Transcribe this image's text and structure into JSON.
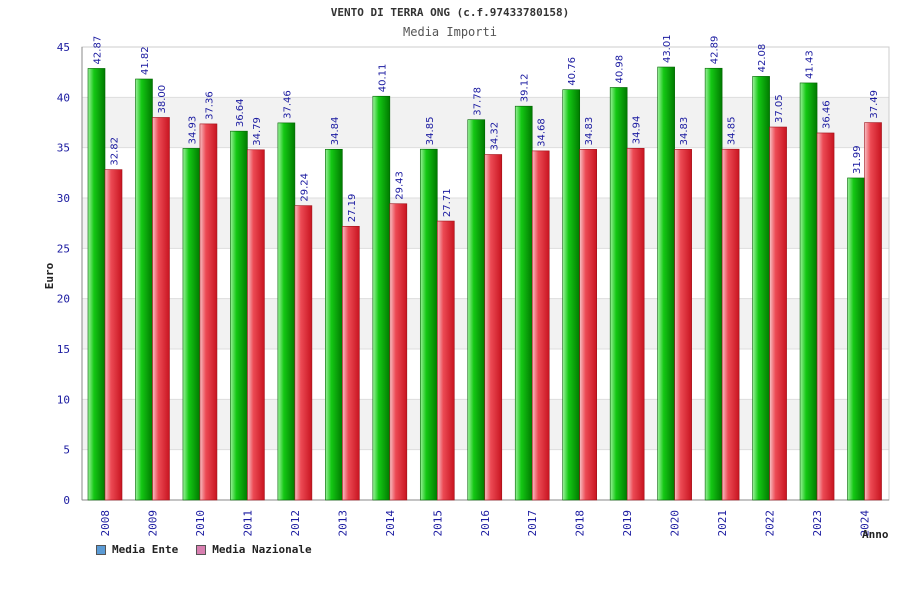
{
  "title": "VENTO DI TERRA ONG (c.f.97433780158)",
  "subtitle": "Media Importi",
  "chart_data": {
    "type": "bar",
    "categories": [
      "2008",
      "2009",
      "2010",
      "2011",
      "2012",
      "2013",
      "2014",
      "2015",
      "2016",
      "2017",
      "2018",
      "2019",
      "2020",
      "2021",
      "2022",
      "2023",
      "2024"
    ],
    "series": [
      {
        "name": "Media Ente",
        "values": [
          42.87,
          41.82,
          34.93,
          36.64,
          37.46,
          34.84,
          40.11,
          34.85,
          37.78,
          39.12,
          40.76,
          40.98,
          43.01,
          42.89,
          42.08,
          41.43,
          31.99
        ],
        "labels": [
          "42.87",
          "41.82",
          "34.93",
          "36.64",
          "37.46",
          "34.84",
          "40.11",
          "34.85",
          "37.78",
          "39.12",
          "40.76",
          "40.98",
          "43.01",
          "42.89",
          "42.08",
          "41.43",
          "31.99"
        ],
        "color": "#00b000",
        "legend_color": "#5b9bd5"
      },
      {
        "name": "Media Nazionale",
        "values": [
          32.82,
          38.0,
          37.36,
          34.79,
          29.24,
          27.19,
          29.43,
          27.71,
          34.32,
          34.68,
          34.83,
          34.94,
          34.83,
          34.85,
          37.05,
          36.46,
          37.49
        ],
        "labels": [
          "32.82",
          "38.00",
          "37.36",
          "34.79",
          "29.24",
          "27.19",
          "29.43",
          "27.71",
          "34.32",
          "34.68",
          "34.83",
          "34.94",
          "34.83",
          "34.85",
          "37.05",
          "36.46",
          "37.49"
        ],
        "color": "#e8303a",
        "legend_color": "#d87fb0"
      }
    ],
    "ylabel": "Euro",
    "xlabel": "Anno",
    "ylim": [
      0,
      45
    ],
    "yticks": [
      "0",
      "5",
      "10",
      "15",
      "20",
      "25",
      "30",
      "35",
      "40",
      "45"
    ],
    "grid": true
  }
}
